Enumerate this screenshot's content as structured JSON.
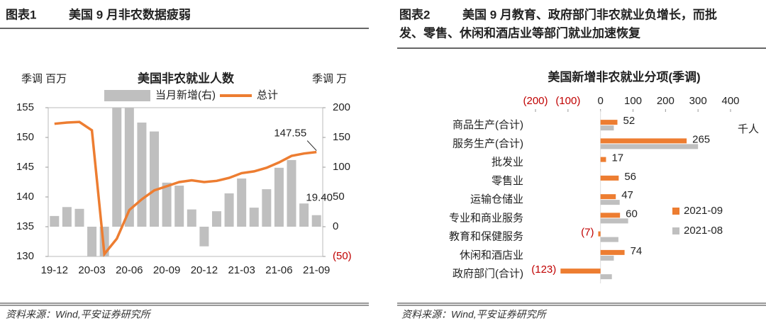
{
  "chart_data": [
    {
      "type": "combo",
      "figure_label": "图表1",
      "heading": "美国 9 月非农数据疲弱",
      "title": "美国非农就业人数",
      "ylabel": "季调 百万",
      "y2label": "季调 万",
      "source": "资料来源：Wind,平安证券研究所",
      "categories": [
        "19-12",
        null,
        null,
        "20-03",
        null,
        null,
        "20-06",
        null,
        null,
        "20-09",
        null,
        null,
        "20-12",
        null,
        null,
        "21-03",
        null,
        null,
        "21-06",
        null,
        null,
        "21-09"
      ],
      "ylim": [
        130,
        155
      ],
      "yticks": [
        130,
        135,
        140,
        145,
        150,
        155
      ],
      "y2lim": [
        -50,
        200
      ],
      "y2ticks": [
        {
          "value": -50,
          "label": "(50)"
        },
        0,
        50,
        100,
        150,
        200
      ],
      "series": [
        {
          "name": "当月新增(右)",
          "type": "bar",
          "axis": "y2",
          "color": "#bfbfbf",
          "values": [
            18,
            33,
            30,
            -50,
            -50,
            200,
            200,
            175,
            160,
            74,
            69,
            29,
            -33,
            26,
            56,
            81,
            32,
            63,
            99,
            112,
            39,
            19.4
          ],
          "value_labels": [
            null,
            null,
            null,
            null,
            null,
            null,
            null,
            null,
            null,
            null,
            null,
            null,
            null,
            null,
            null,
            null,
            null,
            null,
            null,
            null,
            null,
            "19.40"
          ]
        },
        {
          "name": "总计",
          "type": "line",
          "color": "#ed7d31",
          "values": [
            152.3,
            152.5,
            152.6,
            151.2,
            130.4,
            133.0,
            137.8,
            139.6,
            141.1,
            141.8,
            142.5,
            142.8,
            142.5,
            142.7,
            143.2,
            144.0,
            144.3,
            144.9,
            145.8,
            146.9,
            147.3,
            147.55
          ],
          "value_labels": [
            null,
            null,
            null,
            null,
            null,
            null,
            null,
            null,
            null,
            null,
            null,
            null,
            null,
            null,
            null,
            null,
            null,
            null,
            null,
            null,
            null,
            "147.55"
          ]
        }
      ]
    },
    {
      "type": "hbar",
      "figure_label": "图表2",
      "heading": [
        "美国 9 月教育、政府部门非农就业负增长，而批",
        "发、零售、休闲和酒店业等部门就业加速恢复"
      ],
      "title": "美国新增非农就业分项(季调)",
      "xlabel": "千人",
      "source": "资料来源：Wind,平安证券研究所",
      "categories": [
        "商品生产(合计)",
        "服务生产(合计)",
        "批发业",
        "零售业",
        "运输仓储业",
        "专业和商业服务",
        "教育和保健服务",
        "休闲和酒店业",
        "政府部门(合计)"
      ],
      "xlim": [
        -200,
        400
      ],
      "xticks": [
        {
          "value": -200,
          "label": "(200)"
        },
        {
          "value": -100,
          "label": "(100)"
        },
        0,
        100,
        200,
        300,
        400
      ],
      "legend": "right",
      "series": [
        {
          "name": "2021-09",
          "color": "#ed7d31",
          "values": [
            52,
            265,
            17,
            56,
            47,
            60,
            -7,
            74,
            -123
          ],
          "value_labels": [
            "52",
            "265",
            "17",
            "56",
            "47",
            "60",
            "(7)",
            "74",
            "(123)"
          ]
        },
        {
          "name": "2021-08",
          "color": "#bfbfbf",
          "values": [
            41,
            300,
            0,
            0,
            59,
            85,
            55,
            41,
            35
          ]
        }
      ]
    }
  ]
}
